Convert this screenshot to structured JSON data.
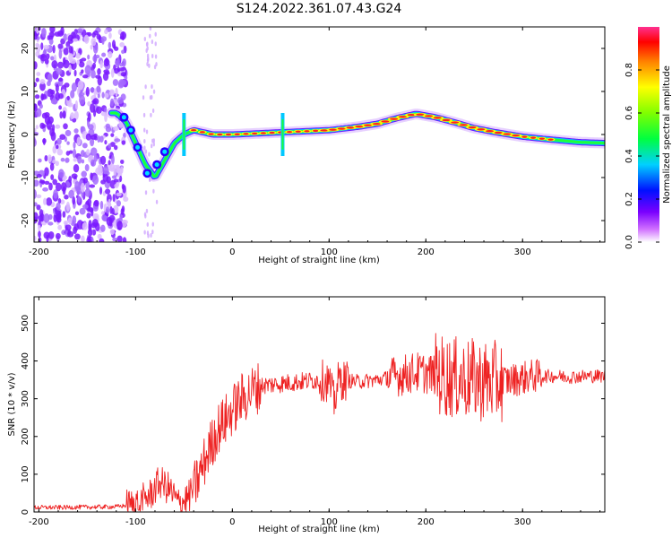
{
  "title": "S124.2022.361.07.43.G24",
  "chart_data": [
    {
      "type": "heatmap",
      "xlabel": "Height of straight line (km)",
      "ylabel": "Frequency (Hz)",
      "xlim": [
        -205,
        385
      ],
      "ylim": [
        -25,
        25
      ],
      "xticks": [
        -200,
        -100,
        0,
        100,
        200,
        300
      ],
      "yticks": [
        -20,
        -10,
        0,
        10,
        20
      ],
      "colorbar": {
        "label": "Normalized spectral amplitude",
        "range": [
          0,
          1
        ],
        "ticks": [
          0.0,
          0.2,
          0.4,
          0.6,
          0.8
        ],
        "colormap": "rainbow (magenta-blue-cyan-green-yellow-red-pink)"
      },
      "ridge": {
        "description": "dominant frequency track",
        "x": [
          -120,
          -110,
          -100,
          -90,
          -80,
          -70,
          -60,
          -50,
          -40,
          -20,
          0,
          20,
          50,
          80,
          100,
          130,
          150,
          170,
          190,
          210,
          230,
          250,
          270,
          300,
          330,
          360,
          385
        ],
        "y": [
          5,
          3,
          -2,
          -7,
          -10,
          -6,
          -2,
          0,
          1,
          0,
          0,
          0.2,
          0.5,
          0.8,
          1.0,
          1.8,
          2.5,
          3.8,
          4.8,
          4.0,
          2.8,
          1.5,
          0.6,
          -0.5,
          -1.2,
          -1.8,
          -2.0
        ]
      }
    },
    {
      "type": "line",
      "xlabel": "Height of straight line (km)",
      "ylabel": "SNR (10 * v/v)",
      "xlim": [
        -205,
        385
      ],
      "ylim": [
        0,
        570
      ],
      "xticks": [
        -200,
        -100,
        0,
        100,
        200,
        300
      ],
      "yticks": [
        0,
        100,
        200,
        300,
        400,
        500
      ],
      "color": "#ee2222",
      "series": [
        {
          "x": [
            -205,
            -180,
            -150,
            -120,
            -100,
            -85,
            -75,
            -65,
            -55,
            -45,
            -35,
            -25,
            -15,
            -5,
            0,
            10,
            20,
            30,
            50,
            70,
            90,
            100,
            105,
            110,
            130,
            150,
            170,
            190,
            210,
            230,
            250,
            270,
            290,
            310,
            330,
            350,
            370,
            385
          ],
          "values": [
            12,
            12,
            13,
            14,
            20,
            45,
            80,
            60,
            20,
            40,
            90,
            160,
            220,
            250,
            270,
            300,
            320,
            335,
            340,
            345,
            350,
            345,
            290,
            350,
            345,
            350,
            360,
            370,
            365,
            355,
            350,
            345,
            350,
            360,
            360,
            358,
            360,
            360
          ]
        }
      ]
    }
  ],
  "colors": {
    "line": "#ee2222",
    "axis": "#000000",
    "background": "#ffffff"
  }
}
